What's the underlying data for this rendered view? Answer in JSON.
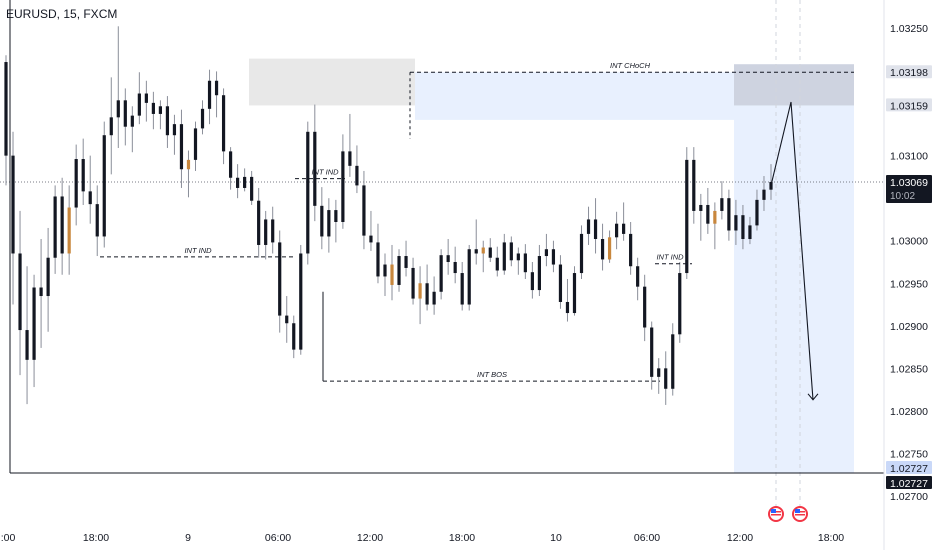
{
  "header": {
    "symbol_title": "EURUSD, 15, FXCM"
  },
  "colors": {
    "candle": "#131722",
    "wick": "#8a8e99",
    "highlight_candle": "#c8873d",
    "supply_zone": "#e8e8e8",
    "target_zone": "#e8f0fe",
    "sell_zone_top": "#b8bcc6",
    "axis_text": "#131722",
    "badge_dark": "#131722",
    "badge_gray": "#e0e3eb",
    "badge_blue": "#c9d8f8",
    "event_red": "#f23645"
  },
  "chart_data": {
    "type": "candlestick",
    "symbol": "EURUSD",
    "timeframe": "15",
    "broker": "FXCM",
    "ylim": [
      1.0267,
      1.033
    ],
    "y_ticks": [
      "1.03250",
      "1.03100",
      "1.03000",
      "1.02950",
      "1.02900",
      "1.02850",
      "1.02800",
      "1.02750",
      "1.02700"
    ],
    "x_ticks": [
      ":00",
      "18:00",
      "9",
      "06:00",
      "12:00",
      "18:00",
      "10",
      "06:00",
      "12:00",
      "18:00"
    ],
    "price_badges": [
      {
        "value": "1.03198",
        "style": "gray"
      },
      {
        "value": "1.03159",
        "style": "gray"
      },
      {
        "value": "1.03069",
        "sub": "10:02",
        "style": "dark"
      },
      {
        "value": "1.02727",
        "style": "blue"
      },
      {
        "value": "1.02727",
        "style": "dark"
      }
    ],
    "annotations": [
      {
        "text": "INT IND",
        "price": 1.02981
      },
      {
        "text": "INT IND",
        "price": 1.03073
      },
      {
        "text": "INT BOS",
        "price": 1.02835
      },
      {
        "text": "INT IND",
        "price": 1.02973
      },
      {
        "text": "INT CHoCH",
        "price": 1.03198
      }
    ],
    "zones": [
      {
        "type": "supply",
        "price_top": 1.03214,
        "price_bottom": 1.03159
      },
      {
        "type": "target_box",
        "price_top": 1.03198,
        "price_bottom": 1.02727
      }
    ],
    "projection_path": [
      1.03065,
      1.03163,
      1.02813
    ],
    "horizontal_lines": [
      {
        "price": 1.03069,
        "style": "dotted"
      },
      {
        "price": 1.02727,
        "style": "solid"
      }
    ],
    "candles_ohlc": [
      [
        1.0321,
        1.03218,
        1.03065,
        1.031
      ],
      [
        1.031,
        1.03128,
        1.02925,
        1.02985
      ],
      [
        1.02985,
        1.03035,
        1.02842,
        1.02895
      ],
      [
        1.02895,
        1.0297,
        1.02808,
        1.0286
      ],
      [
        1.0286,
        1.0296,
        1.02828,
        1.02945
      ],
      [
        1.02945,
        1.03002,
        1.02874,
        1.02935
      ],
      [
        1.02935,
        1.03015,
        1.02893,
        1.0298
      ],
      [
        1.0298,
        1.03065,
        1.02961,
        1.03052
      ],
      [
        1.03052,
        1.03074,
        1.0296,
        1.02985
      ],
      [
        1.02985,
        1.03065,
        1.0296,
        1.03039
      ],
      [
        1.03039,
        1.03113,
        1.03018,
        1.03096
      ],
      [
        1.03096,
        1.0312,
        1.03042,
        1.03058
      ],
      [
        1.03058,
        1.031,
        1.0302,
        1.03043
      ],
      [
        1.03043,
        1.03065,
        1.02982,
        1.03005
      ],
      [
        1.03005,
        1.0314,
        1.02992,
        1.03124
      ],
      [
        1.03124,
        1.03192,
        1.03078,
        1.03145
      ],
      [
        1.03145,
        1.03252,
        1.03109,
        1.03165
      ],
      [
        1.03165,
        1.03179,
        1.03112,
        1.03134
      ],
      [
        1.03134,
        1.03158,
        1.03104,
        1.03147
      ],
      [
        1.03147,
        1.03198,
        1.03137,
        1.03173
      ],
      [
        1.03173,
        1.03188,
        1.0314,
        1.03162
      ],
      [
        1.03162,
        1.03175,
        1.03131,
        1.03149
      ],
      [
        1.03149,
        1.03165,
        1.03131,
        1.03158
      ],
      [
        1.03158,
        1.0317,
        1.03109,
        1.03124
      ],
      [
        1.03124,
        1.03148,
        1.03101,
        1.03137
      ],
      [
        1.03137,
        1.03154,
        1.03062,
        1.03084
      ],
      [
        1.03084,
        1.03106,
        1.03051,
        1.03095
      ],
      [
        1.03095,
        1.0314,
        1.03082,
        1.03132
      ],
      [
        1.03132,
        1.03165,
        1.03125,
        1.03155
      ],
      [
        1.03155,
        1.03201,
        1.03137,
        1.03188
      ],
      [
        1.03188,
        1.03199,
        1.03145,
        1.03171
      ],
      [
        1.03171,
        1.03179,
        1.0309,
        1.03105
      ],
      [
        1.03105,
        1.0311,
        1.0306,
        1.03074
      ],
      [
        1.03074,
        1.0309,
        1.0305,
        1.03062
      ],
      [
        1.03062,
        1.03085,
        1.03058,
        1.03075
      ],
      [
        1.03075,
        1.03082,
        1.03042,
        1.03047
      ],
      [
        1.03047,
        1.03062,
        1.0298,
        1.02995
      ],
      [
        1.02995,
        1.03035,
        1.02978,
        1.03025
      ],
      [
        1.03025,
        1.0304,
        1.02985,
        1.02998
      ],
      [
        1.02998,
        1.03012,
        1.02892,
        1.02912
      ],
      [
        1.02912,
        1.02935,
        1.0288,
        1.02903
      ],
      [
        1.02903,
        1.02912,
        1.02862,
        1.02872
      ],
      [
        1.02872,
        1.02995,
        1.02866,
        1.02985
      ],
      [
        1.02985,
        1.0314,
        1.02972,
        1.03128
      ],
      [
        1.03128,
        1.0316,
        1.03023,
        1.03041
      ],
      [
        1.03041,
        1.03063,
        1.0299,
        1.03005
      ],
      [
        1.03005,
        1.0305,
        1.02986,
        1.03036
      ],
      [
        1.03036,
        1.03048,
        1.02998,
        1.03022
      ],
      [
        1.03022,
        1.03125,
        1.03014,
        1.03105
      ],
      [
        1.03105,
        1.03149,
        1.03075,
        1.03088
      ],
      [
        1.03088,
        1.03112,
        1.03056,
        1.03065
      ],
      [
        1.03065,
        1.03082,
        1.0299,
        1.03006
      ],
      [
        1.03006,
        1.03035,
        1.02988,
        1.02998
      ],
      [
        1.02998,
        1.0302,
        1.0295,
        1.02958
      ],
      [
        1.02958,
        1.02985,
        1.02935,
        1.02972
      ],
      [
        1.02972,
        1.02995,
        1.0293,
        1.02948
      ],
      [
        1.02948,
        1.0299,
        1.0294,
        1.02982
      ],
      [
        1.02982,
        1.03,
        1.02958,
        1.02968
      ],
      [
        1.02968,
        1.0298,
        1.02925,
        1.02932
      ],
      [
        1.02932,
        1.0297,
        1.02902,
        1.0295
      ],
      [
        1.0295,
        1.02972,
        1.02918,
        1.02925
      ],
      [
        1.02925,
        1.02958,
        1.02913,
        1.0294
      ],
      [
        1.0294,
        1.0299,
        1.02931,
        1.02983
      ],
      [
        1.02983,
        1.03002,
        1.0296,
        1.02975
      ],
      [
        1.02975,
        1.02993,
        1.0295,
        1.02962
      ],
      [
        1.02962,
        1.02975,
        1.02918,
        1.02925
      ],
      [
        1.02925,
        1.02995,
        1.02918,
        1.0299
      ],
      [
        1.0299,
        1.03025,
        1.02972,
        1.02985
      ],
      [
        1.02985,
        1.03,
        1.02963,
        1.02992
      ],
      [
        1.02992,
        1.03003,
        1.02975,
        1.0298
      ],
      [
        1.0298,
        1.02993,
        1.02958,
        1.02965
      ],
      [
        1.02965,
        1.03008,
        1.0296,
        1.02998
      ],
      [
        1.02998,
        1.03005,
        1.0297,
        1.02977
      ],
      [
        1.02977,
        1.02992,
        1.0296,
        1.02985
      ],
      [
        1.02985,
        1.02996,
        1.02955,
        1.02963
      ],
      [
        1.02963,
        1.02975,
        1.02932,
        1.02942
      ],
      [
        1.02942,
        1.02995,
        1.02935,
        1.02982
      ],
      [
        1.02982,
        1.03008,
        1.0297,
        1.0299
      ],
      [
        1.0299,
        1.03,
        1.02963,
        1.02972
      ],
      [
        1.02972,
        1.02983,
        1.0292,
        1.02928
      ],
      [
        1.02928,
        1.02955,
        1.02905,
        1.02915
      ],
      [
        1.02915,
        1.0297,
        1.02912,
        1.02962
      ],
      [
        1.02962,
        1.03018,
        1.02955,
        1.03008
      ],
      [
        1.03008,
        1.0304,
        1.02995,
        1.03025
      ],
      [
        1.03025,
        1.0305,
        1.02985,
        1.03002
      ],
      [
        1.03002,
        1.0302,
        1.02965,
        1.02978
      ],
      [
        1.02978,
        1.03012,
        1.02974,
        1.03004
      ],
      [
        1.03004,
        1.03034,
        1.0299,
        1.0302
      ],
      [
        1.0302,
        1.03045,
        1.03,
        1.03008
      ],
      [
        1.03008,
        1.03022,
        1.0296,
        1.0297
      ],
      [
        1.0297,
        1.0298,
        1.0293,
        1.02946
      ],
      [
        1.02946,
        1.0296,
        1.02882,
        1.02898
      ],
      [
        1.02898,
        1.02905,
        1.02825,
        1.0284
      ],
      [
        1.0284,
        1.02862,
        1.0282,
        1.0285
      ],
      [
        1.0285,
        1.0287,
        1.02807,
        1.02826
      ],
      [
        1.02826,
        1.02903,
        1.02818,
        1.0289
      ],
      [
        1.0289,
        1.02975,
        1.0288,
        1.02962
      ],
      [
        1.02962,
        1.0311,
        1.02955,
        1.03095
      ],
      [
        1.03095,
        1.0311,
        1.0302,
        1.03035
      ],
      [
        1.03035,
        1.03055,
        1.03,
        1.03042
      ],
      [
        1.03042,
        1.03062,
        1.03008,
        1.0302
      ],
      [
        1.0302,
        1.03045,
        1.0299,
        1.03035
      ],
      [
        1.03035,
        1.0307,
        1.03025,
        1.0305
      ],
      [
        1.0305,
        1.0306,
        1.03,
        1.03012
      ],
      [
        1.03012,
        1.03048,
        1.02995,
        1.0303
      ],
      [
        1.0303,
        1.03042,
        1.0299,
        1.03002
      ],
      [
        1.03002,
        1.03028,
        1.02996,
        1.03018
      ],
      [
        1.03018,
        1.0306,
        1.03012,
        1.03048
      ],
      [
        1.03048,
        1.03076,
        1.03035,
        1.0306
      ],
      [
        1.0306,
        1.0309,
        1.03048,
        1.03069
      ]
    ],
    "highlight_candles": [
      9,
      26,
      55,
      59,
      68,
      86,
      101
    ]
  }
}
